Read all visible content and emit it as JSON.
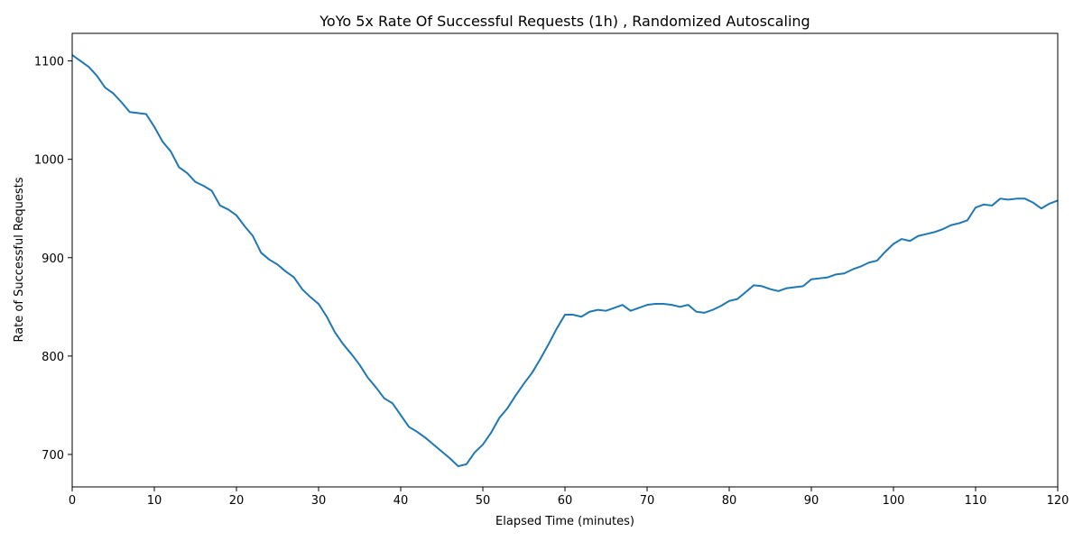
{
  "chart_data": {
    "type": "line",
    "title": "YoYo 5x Rate Of Successful Requests (1h) , Randomized Autoscaling",
    "xlabel": "Elapsed Time (minutes)",
    "ylabel": "Rate of Successful Requests",
    "xlim": [
      0,
      120
    ],
    "ylim": [
      667,
      1128
    ],
    "xticks": [
      0,
      10,
      20,
      30,
      40,
      50,
      60,
      70,
      80,
      90,
      100,
      110,
      120
    ],
    "yticks": [
      700,
      800,
      900,
      1000,
      1100
    ],
    "grid": false,
    "legend": "none",
    "series": [
      {
        "color": "#1f77b4",
        "x": [
          0,
          1,
          2,
          3,
          4,
          5,
          6,
          7,
          8,
          9,
          10,
          11,
          12,
          13,
          14,
          15,
          16,
          17,
          18,
          19,
          20,
          21,
          22,
          23,
          24,
          25,
          26,
          27,
          28,
          29,
          30,
          31,
          32,
          33,
          34,
          35,
          36,
          37,
          38,
          39,
          40,
          41,
          42,
          43,
          44,
          45,
          46,
          47,
          48,
          49,
          50,
          51,
          52,
          53,
          54,
          55,
          56,
          57,
          58,
          59,
          60,
          61,
          62,
          63,
          64,
          65,
          66,
          67,
          68,
          69,
          70,
          71,
          72,
          73,
          74,
          75,
          76,
          77,
          78,
          79,
          80,
          81,
          82,
          83,
          84,
          85,
          86,
          87,
          88,
          89,
          90,
          91,
          92,
          93,
          94,
          95,
          96,
          97,
          98,
          99,
          100,
          101,
          102,
          103,
          104,
          105,
          106,
          107,
          108,
          109,
          110,
          111,
          112,
          113,
          114,
          115,
          116,
          117,
          118,
          119,
          120
        ],
        "y": [
          1106,
          1100,
          1094,
          1085,
          1073,
          1067,
          1058,
          1048,
          1047,
          1046,
          1033,
          1018,
          1008,
          992,
          986,
          977,
          973,
          968,
          953,
          949,
          943,
          932,
          922,
          905,
          898,
          893,
          886,
          880,
          868,
          860,
          853,
          840,
          824,
          812,
          802,
          791,
          778,
          768,
          757,
          752,
          740,
          728,
          723,
          717,
          710,
          703,
          696,
          688,
          690,
          702,
          710,
          722,
          737,
          747,
          760,
          772,
          783,
          797,
          812,
          828,
          842,
          842,
          840,
          845,
          847,
          846,
          849,
          852,
          846,
          849,
          852,
          853,
          853,
          852,
          850,
          852,
          845,
          844,
          847,
          851,
          856,
          858,
          865,
          872,
          871,
          868,
          866,
          869,
          870,
          871,
          878,
          879,
          880,
          883,
          884,
          888,
          891,
          895,
          897,
          906,
          914,
          919,
          917,
          922,
          924,
          926,
          929,
          933,
          935,
          938,
          951,
          954,
          953,
          960,
          959,
          960,
          960,
          956,
          950,
          955,
          958
        ]
      }
    ]
  }
}
